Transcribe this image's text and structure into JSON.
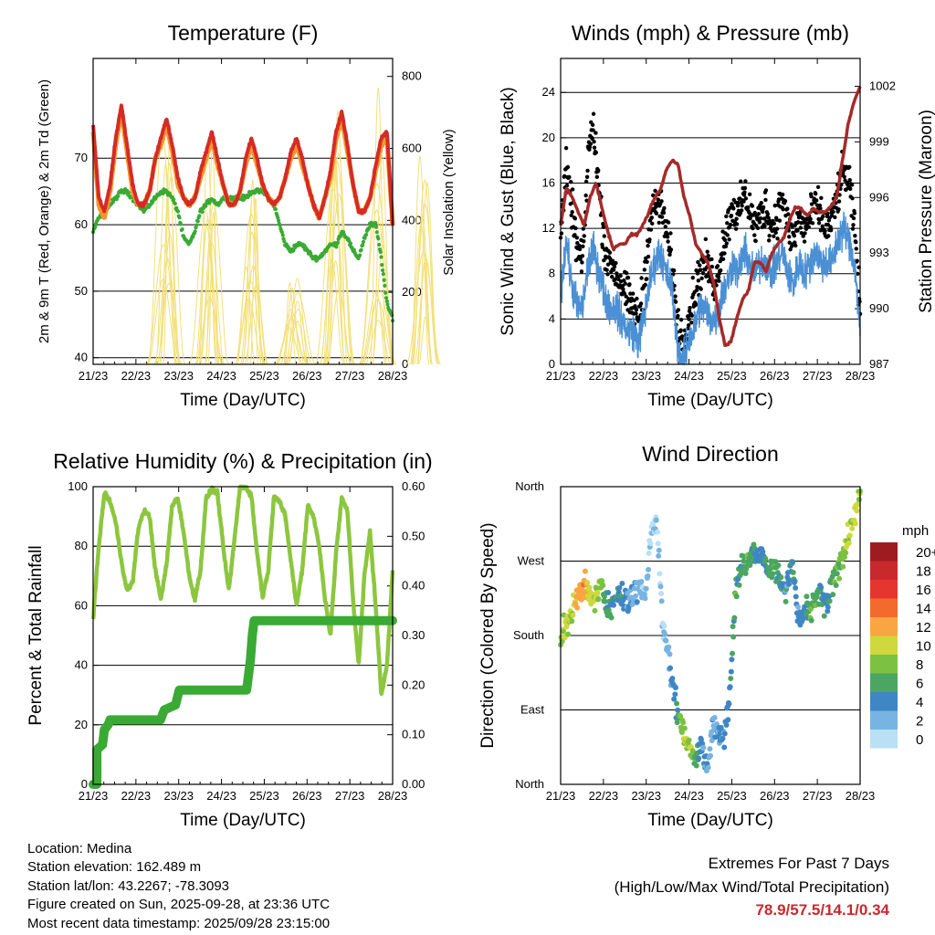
{
  "chart_data": [
    {
      "id": "temperature",
      "type": "line",
      "title": "Temperature (F)",
      "xlabel": "Time (Day/UTC)",
      "ylabel": "2m & 9m T (Red, Orange) & 2m Td (Green)",
      "ylabel_right": "Solar Insolation (Yellow)",
      "x_ticks": [
        "21/23",
        "22/23",
        "23/23",
        "24/23",
        "25/23",
        "26/23",
        "27/23",
        "28/23"
      ],
      "ylim": [
        39,
        85
      ],
      "yticks": [
        40,
        50,
        60,
        70
      ],
      "ylim_right": [
        0,
        850
      ],
      "yticks_right": [
        0,
        200,
        400,
        600,
        800
      ],
      "series": [
        {
          "name": "2m T",
          "color": "#d42b27",
          "values": [
            75,
            64,
            62,
            66,
            73,
            78,
            72,
            66,
            63,
            63,
            65,
            70,
            73,
            76,
            72,
            67,
            64,
            63,
            64,
            68,
            71,
            74,
            70,
            66,
            63,
            63,
            65,
            70,
            73,
            70,
            66,
            64,
            63,
            64,
            67,
            71,
            73,
            70,
            66,
            63,
            61,
            64,
            68,
            74,
            77,
            72,
            66,
            62,
            62,
            64,
            69,
            73,
            74,
            60
          ]
        },
        {
          "name": "9m T",
          "color": "#f5962a",
          "values": [
            74,
            63,
            61,
            65,
            72,
            77,
            71,
            65,
            63,
            63,
            65,
            70,
            72,
            75,
            71,
            66,
            64,
            63,
            64,
            67,
            70,
            73,
            69,
            66,
            63,
            63,
            65,
            69,
            72,
            69,
            66,
            64,
            63,
            64,
            67,
            70,
            72,
            69,
            66,
            63,
            61,
            64,
            67,
            73,
            76,
            71,
            66,
            62,
            62,
            64,
            68,
            72,
            73,
            60
          ]
        },
        {
          "name": "2m Td",
          "color": "#3aaa35",
          "values": [
            59,
            61,
            62,
            63,
            64,
            65,
            65,
            64,
            63,
            62,
            63,
            64,
            65,
            65,
            64,
            62,
            58,
            57,
            59,
            62,
            63,
            64,
            63,
            64,
            64,
            64,
            64,
            64,
            65,
            65,
            65,
            64,
            63,
            60,
            57,
            56,
            57,
            57,
            56,
            55,
            55,
            56,
            57,
            57,
            59,
            58,
            56,
            55,
            58,
            60,
            60,
            55,
            48,
            46
          ]
        },
        {
          "name": "Solar Insolation",
          "color": "#f3e07a",
          "axis": "right",
          "peaks": [
            {
              "day": 0.8,
              "value": 0
            },
            {
              "day": 1.7,
              "value": 720
            },
            {
              "day": 2.7,
              "value": 820
            },
            {
              "day": 3.7,
              "value": 690
            },
            {
              "day": 4.7,
              "value": 240
            },
            {
              "day": 5.7,
              "value": 800
            },
            {
              "day": 6.7,
              "value": 780
            },
            {
              "day": 7.7,
              "value": 750
            }
          ]
        }
      ]
    },
    {
      "id": "winds",
      "type": "scatter",
      "title": "Winds (mph) & Pressure (mb)",
      "xlabel": "Time (Day/UTC)",
      "ylabel": "Sonic Wind & Gust (Blue, Black)",
      "ylabel_right": "Station Pressure (Maroon)",
      "x_ticks": [
        "21/23",
        "22/23",
        "23/23",
        "24/23",
        "25/23",
        "26/23",
        "27/23",
        "28/23"
      ],
      "ylim": [
        0,
        27
      ],
      "yticks": [
        0,
        4,
        8,
        12,
        16,
        20,
        24
      ],
      "ylim_right": [
        987,
        1003.5
      ],
      "yticks_right": [
        987,
        990,
        993,
        996,
        999,
        1002
      ],
      "series": [
        {
          "name": "Sonic Wind",
          "color": "#4b90d4",
          "values": [
            6,
            11,
            7,
            5,
            5,
            9,
            10,
            8,
            6,
            5,
            5,
            4,
            3,
            3,
            2,
            4,
            7,
            9,
            10,
            8,
            7,
            2,
            0,
            2,
            3,
            5,
            5,
            4,
            4,
            6,
            7,
            9,
            8,
            10,
            9,
            8,
            9,
            9,
            8,
            9,
            10,
            8,
            7,
            9,
            8,
            9,
            10,
            9,
            9,
            9,
            11,
            12,
            11,
            9,
            3
          ]
        },
        {
          "name": "Gust",
          "color": "#000000",
          "values": [
            12,
            17,
            14,
            10,
            9,
            19,
            21,
            15,
            10,
            9,
            8,
            7,
            6,
            5,
            4,
            7,
            12,
            14,
            14,
            12,
            9,
            4,
            2,
            4,
            6,
            8,
            9,
            8,
            7,
            10,
            12,
            14,
            13,
            15,
            14,
            12,
            13,
            14,
            12,
            13,
            15,
            12,
            11,
            13,
            12,
            13,
            14,
            13,
            12,
            13,
            15,
            17,
            16,
            12,
            5
          ]
        },
        {
          "name": "Station Pressure",
          "color": "#a52a2a",
          "axis": "right",
          "values": [
            994.5,
            996.5,
            996,
            995.2,
            994.5,
            996,
            996.8,
            995.5,
            994.2,
            993.2,
            993.5,
            993.5,
            994,
            994,
            994.5,
            995.2,
            996,
            996.4,
            997.5,
            998,
            997.8,
            996,
            995,
            993.5,
            993,
            992.5,
            991.5,
            989.5,
            988,
            988.2,
            989.5,
            990.5,
            991,
            992.5,
            992.5,
            992,
            993,
            993.5,
            993.8,
            994.8,
            995.5,
            995.4,
            995,
            995.4,
            995.2,
            995.2,
            995.5,
            996,
            998,
            1000,
            1001.2,
            1002
          ]
        }
      ]
    },
    {
      "id": "humidity",
      "type": "line",
      "title": "Relative Humidity (%) & Precipitation (in)",
      "xlabel": "Time (Day/UTC)",
      "ylabel": "Percent & Total Rainfall",
      "x_ticks": [
        "21/23",
        "22/23",
        "23/23",
        "24/23",
        "25/23",
        "26/23",
        "27/23",
        "28/23"
      ],
      "ylim": [
        0,
        100
      ],
      "yticks": [
        0,
        20,
        40,
        60,
        80,
        100
      ],
      "ylim_right": [
        0,
        0.6
      ],
      "yticks_right": [
        "0.00",
        "0.10",
        "0.20",
        "0.30",
        "0.40",
        "0.50",
        "0.60"
      ],
      "series": [
        {
          "name": "Relative Humidity",
          "color": "#8cc63f",
          "values": [
            56,
            80,
            98,
            95,
            88,
            75,
            65,
            68,
            86,
            92,
            90,
            72,
            62,
            74,
            94,
            96,
            85,
            70,
            62,
            72,
            96,
            99,
            98,
            80,
            65,
            82,
            100,
            100,
            97,
            78,
            63,
            72,
            97,
            95,
            90,
            75,
            60,
            72,
            94,
            90,
            80,
            63,
            50,
            78,
            96,
            92,
            62,
            40,
            70,
            85,
            60,
            30,
            40,
            72
          ]
        },
        {
          "name": "Total Rainfall",
          "color": "#3aaa35",
          "axis": "right",
          "values": [
            [
              0.0,
              0.0
            ],
            [
              0.1,
              0.0
            ],
            [
              0.1,
              0.07
            ],
            [
              0.25,
              0.08
            ],
            [
              0.3,
              0.11
            ],
            [
              0.4,
              0.12
            ],
            [
              0.45,
              0.13
            ],
            [
              1.8,
              0.13
            ],
            [
              1.9,
              0.15
            ],
            [
              2.2,
              0.16
            ],
            [
              2.3,
              0.19
            ],
            [
              3.5,
              0.19
            ],
            [
              4.1,
              0.19
            ],
            [
              4.2,
              0.25
            ],
            [
              4.25,
              0.3
            ],
            [
              4.3,
              0.33
            ],
            [
              8.0,
              0.33
            ]
          ]
        }
      ]
    },
    {
      "id": "wind_direction",
      "type": "scatter",
      "title": "Wind Direction",
      "xlabel": "Time (Day/UTC)",
      "ylabel": "Direction (Colored By Speed)",
      "x_ticks": [
        "21/23",
        "22/23",
        "23/23",
        "24/23",
        "25/23",
        "26/23",
        "27/23",
        "28/23"
      ],
      "y_ticks": [
        "North",
        "East",
        "South",
        "West",
        "North"
      ],
      "ylim": [
        0,
        360
      ],
      "legend": {
        "title": "mph",
        "labels": [
          "20+",
          "18",
          "16",
          "14",
          "12",
          "10",
          "8",
          "6",
          "4",
          "2",
          "0"
        ],
        "colors": [
          "#9e1c1f",
          "#c8292d",
          "#e4362e",
          "#f26a2d",
          "#f9a642",
          "#cfd83c",
          "#7cc142",
          "#4aa660",
          "#3f86c4",
          "#78b4e1",
          "#b9e0f5"
        ]
      },
      "series": [
        {
          "name": "Direction",
          "values": [
            175,
            190,
            205,
            230,
            240,
            230,
            225,
            240,
            225,
            210,
            230,
            225,
            220,
            230,
            240,
            230,
            300,
            320,
            200,
            160,
            110,
            80,
            60,
            40,
            30,
            50,
            20,
            70,
            60,
            60,
            120,
            240,
            260,
            270,
            280,
            280,
            270,
            260,
            265,
            245,
            235,
            270,
            200,
            205,
            210,
            220,
            230,
            210,
            240,
            260,
            280,
            300,
            320,
            350
          ]
        },
        {
          "name": "Speed",
          "values": [
            8,
            10,
            9,
            12,
            13,
            10,
            9,
            8,
            6,
            5,
            5,
            4,
            3,
            3,
            2,
            2,
            1,
            1,
            1,
            2,
            4,
            7,
            9,
            8,
            6,
            4,
            3,
            2,
            3,
            4,
            5,
            6,
            5,
            7,
            6,
            4,
            4,
            6,
            6,
            5,
            4,
            5,
            3,
            4,
            6,
            7,
            5,
            4,
            6,
            7,
            8,
            9,
            10,
            9
          ]
        }
      ]
    }
  ],
  "info": {
    "location": "Location: Medina",
    "elevation": "Station elevation: 162.489 m",
    "latlon": "Station lat/lon: 43.2267; -78.3093",
    "created": "Figure created on Sun, 2025-09-28, at 23:36 UTC",
    "timestamp": "Most recent data timestamp: 2025/09/28 23:15:00"
  },
  "extremes": {
    "title": "Extremes For Past 7 Days",
    "subtitle": "(High/Low/Max Wind/Total Precipitation)",
    "values": "78.9/57.5/14.1/0.34"
  },
  "colors": {
    "grid": "#000000",
    "background": "#ffffff"
  }
}
